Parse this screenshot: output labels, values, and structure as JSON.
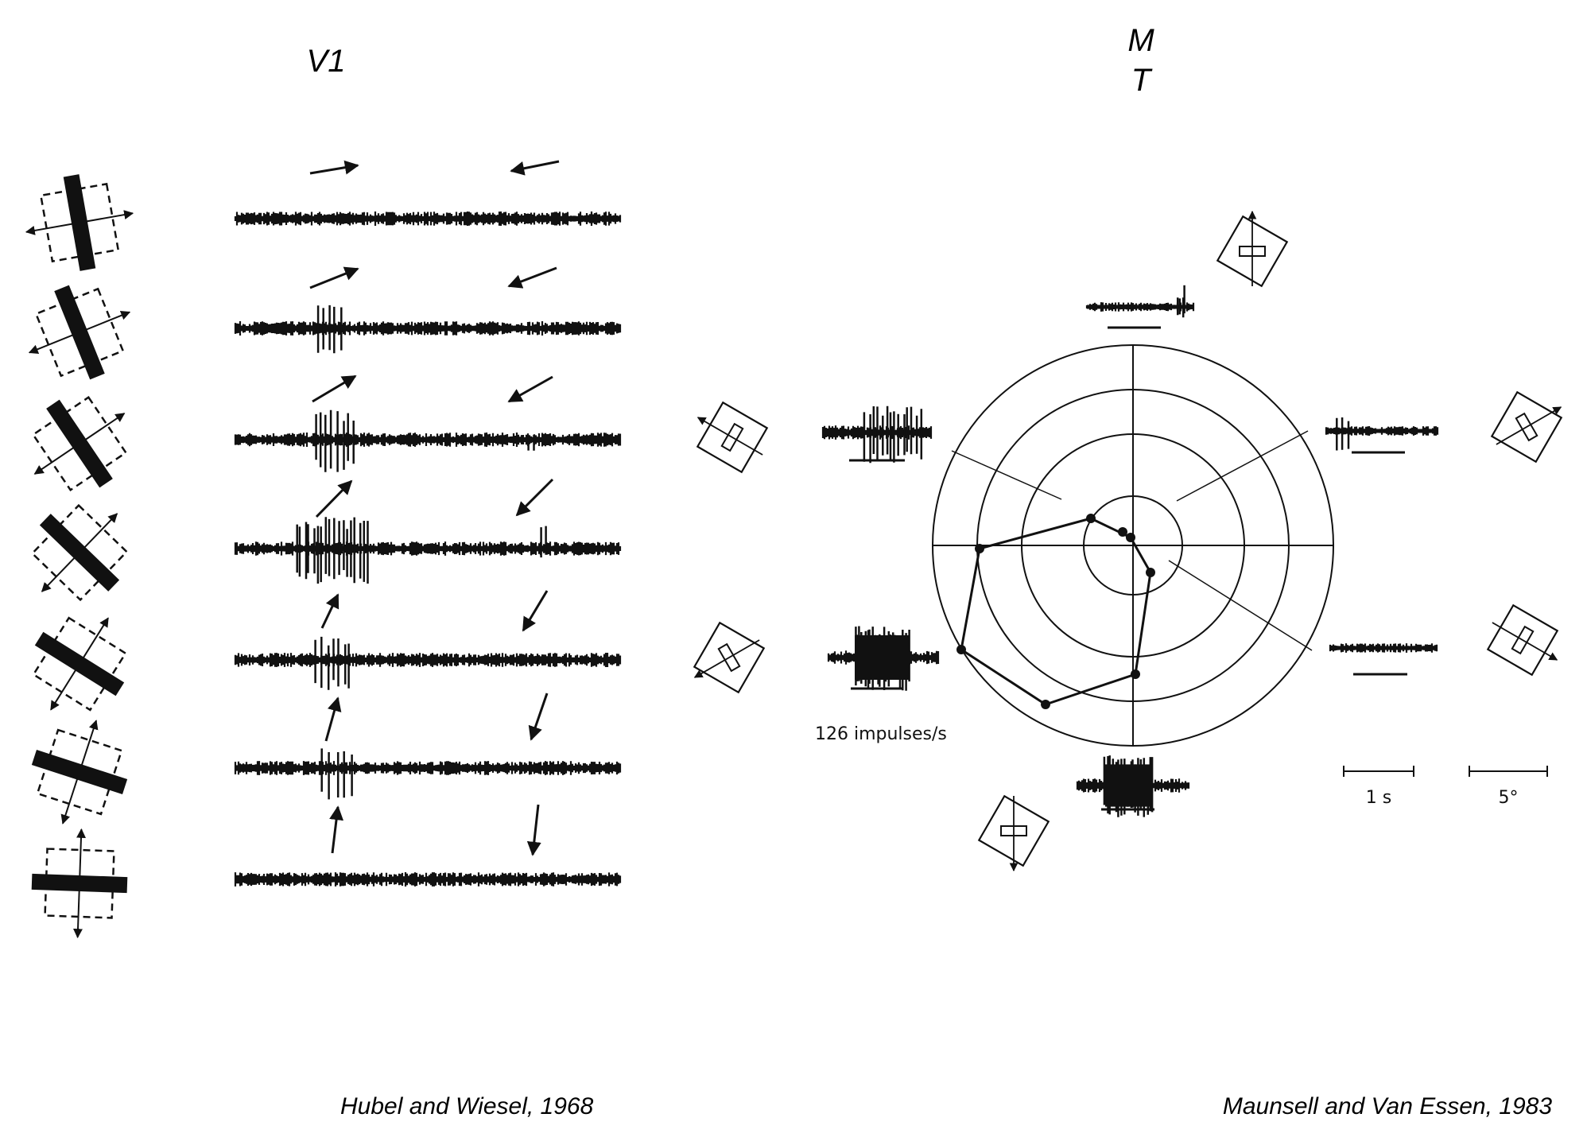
{
  "panels": {
    "left": {
      "title": "V1",
      "citation": "Hubel and Wiesel, 1968"
    },
    "right": {
      "title": "M\nT",
      "citation": "Maunsell and Van Essen, 1983"
    }
  },
  "labels": {
    "rate": "126 impulses/s",
    "time_scale": "1 s",
    "angle_scale": "5°"
  },
  "colors": {
    "ink": "#111111",
    "background": "#ffffff"
  },
  "icons": [
    "bar-stimulus-icon",
    "receptive-field-icon",
    "direction-arrow-icon",
    "spike-train-icon",
    "polar-plot-icon"
  ]
}
